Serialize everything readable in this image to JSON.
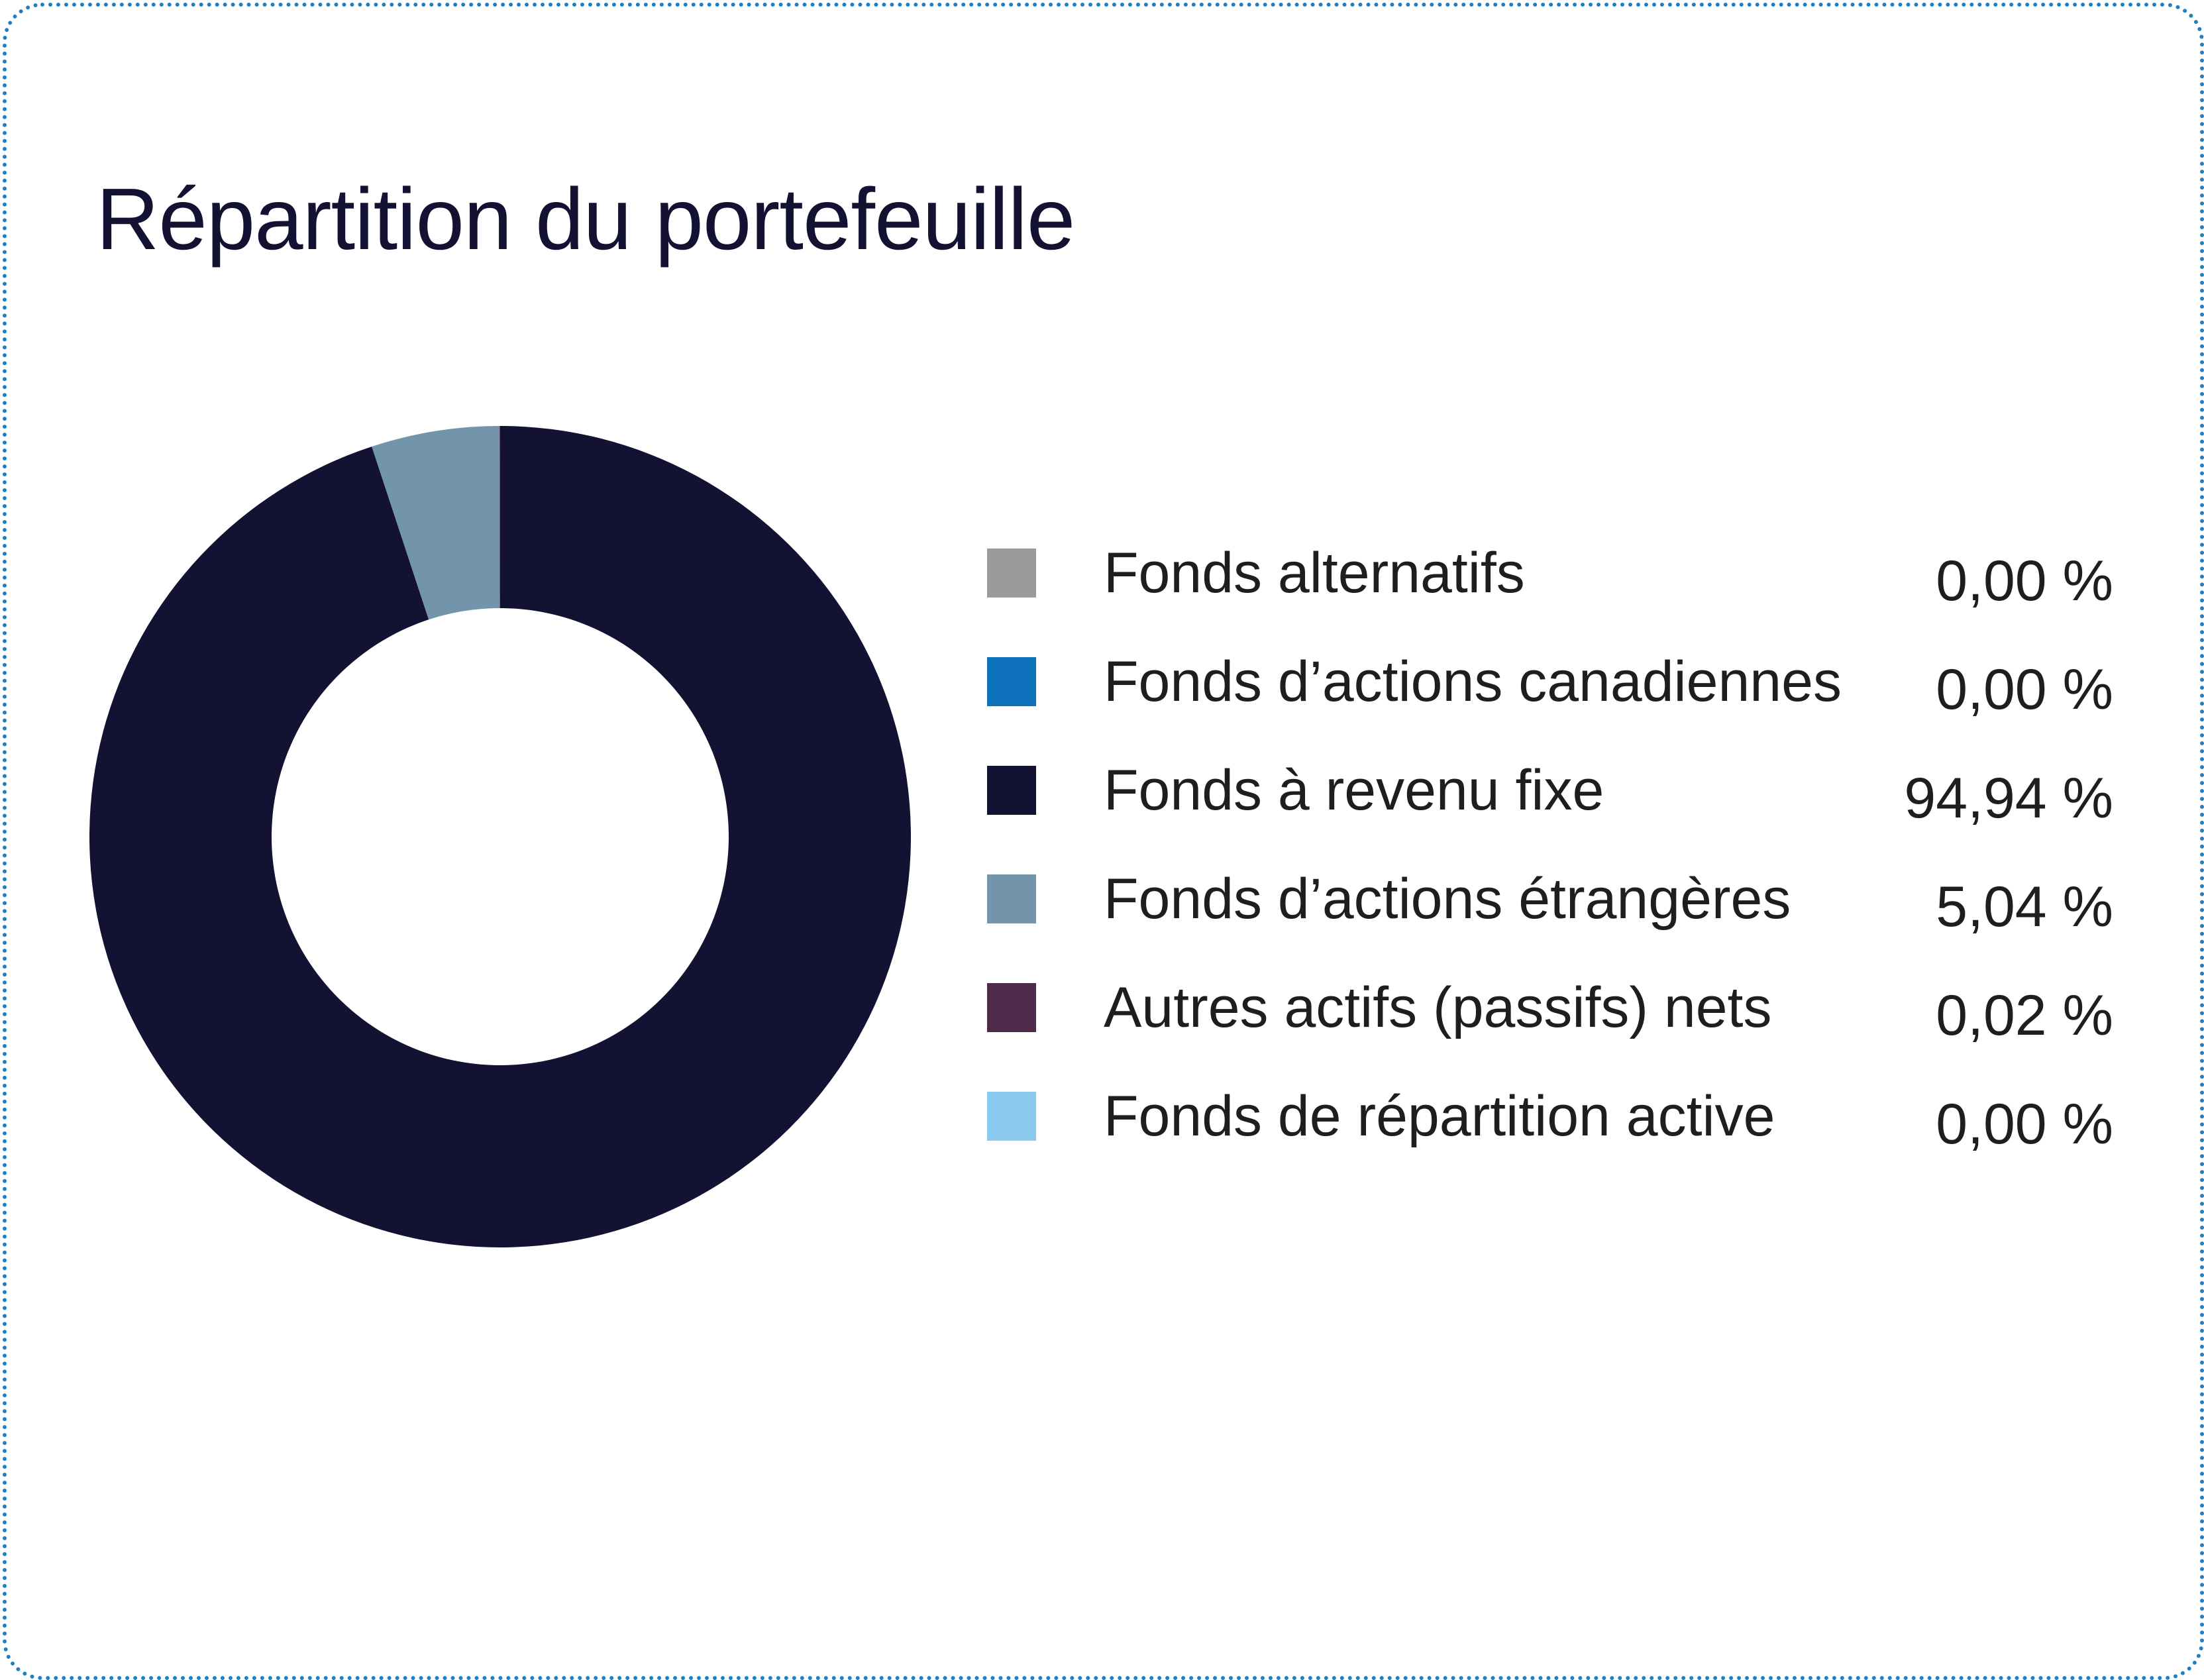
{
  "title": "Répartition du portefeuille",
  "chart_data": {
    "type": "pie",
    "title": "Répartition du portefeuille",
    "categories": [
      "Fonds alternatifs",
      "Fonds d’actions canadiennes",
      "Fonds à revenu fixe",
      "Fonds d’actions étrangères",
      "Autres actifs (passifs) nets",
      "Fonds de répartition active"
    ],
    "values": [
      0.0,
      0.0,
      94.94,
      5.04,
      0.02,
      0.0
    ],
    "value_labels": [
      "0,00 %",
      "0,00 %",
      "94,94 %",
      "5,04 %",
      "0,02 %",
      "0,00 %"
    ],
    "colors": [
      "#9a9a9a",
      "#0f72bc",
      "#141233",
      "#7295ab",
      "#4e2a4a",
      "#8ccbf0"
    ],
    "donut": true,
    "legend_position": "right"
  },
  "legend": [
    {
      "label": "Fonds alternatifs",
      "value": "0,00 %"
    },
    {
      "label": "Fonds d’actions canadiennes",
      "value": "0,00 %"
    },
    {
      "label": "Fonds à revenu fixe",
      "value": "94,94 %"
    },
    {
      "label": "Fonds d’actions étrangères",
      "value": "5,04 %"
    },
    {
      "label": "Autres actifs (passifs) nets",
      "value": "0,02 %"
    },
    {
      "label": "Fonds de répartition active",
      "value": "0,00 %"
    }
  ]
}
